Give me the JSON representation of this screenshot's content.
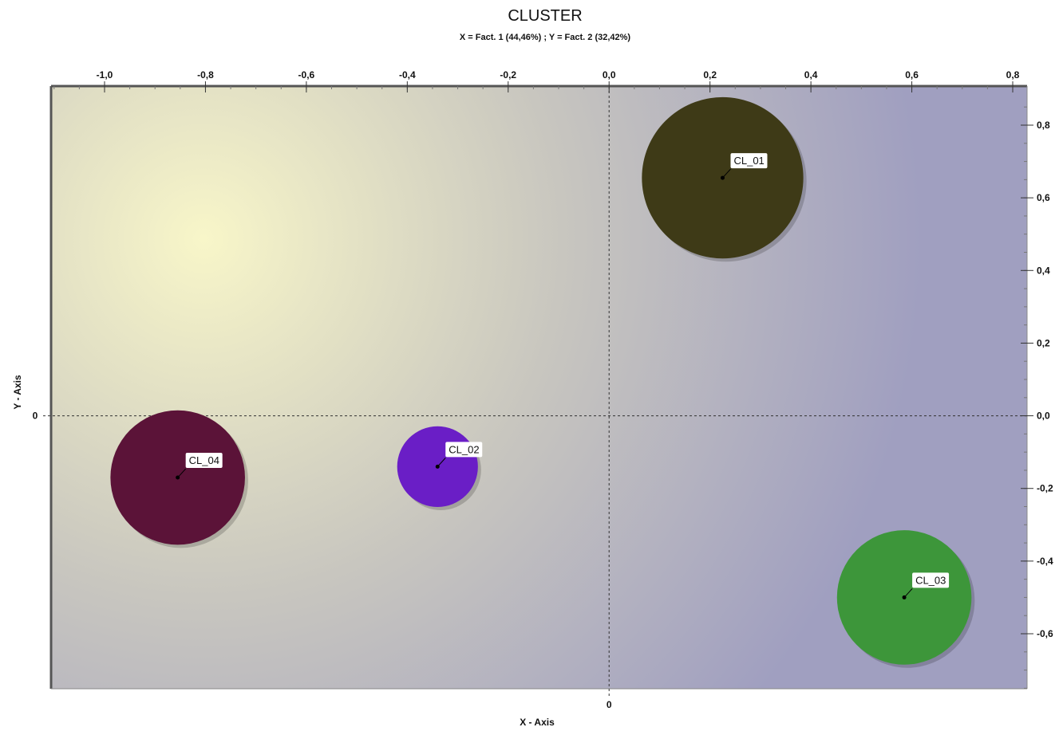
{
  "chart_data": {
    "type": "scatter",
    "title": "CLUSTER",
    "subtitle": "X = Fact. 1 (44,46%) ; Y = Fact. 2 (32,42%)",
    "xlabel": "X - Axis",
    "ylabel": "Y - Axis",
    "xlim": [
      -1.1,
      0.83
    ],
    "ylim": [
      -0.75,
      0.9
    ],
    "x_ticks": [
      -1.0,
      -0.8,
      -0.6,
      -0.4,
      -0.2,
      0.0,
      0.2,
      0.4,
      0.6,
      0.8
    ],
    "x_tick_labels": [
      "-1,0",
      "-0,8",
      "-0,6",
      "-0,4",
      "-0,2",
      "0,0",
      "0,2",
      "0,4",
      "0,6",
      "0,8"
    ],
    "y_ticks": [
      0.8,
      0.6,
      0.4,
      0.2,
      0.0,
      -0.2,
      -0.4,
      -0.6
    ],
    "y_tick_labels": [
      "0,8",
      "0,6",
      "0,4",
      "0,2",
      "0,0",
      "-0,2",
      "-0,4",
      "-0,6"
    ],
    "x_origin_label": "0",
    "y_origin_label": "0",
    "grid": false,
    "background_colors": [
      "#f8f6c9",
      "#a09fc0"
    ],
    "points": [
      {
        "label": "CL_01",
        "x": 0.225,
        "y": 0.655,
        "size": 0.72,
        "color": "#3e3a17"
      },
      {
        "label": "CL_02",
        "x": -0.34,
        "y": -0.14,
        "size": 0.36,
        "color": "#6a1ec6"
      },
      {
        "label": "CL_03",
        "x": 0.585,
        "y": -0.5,
        "size": 0.6,
        "color": "#3d963a"
      },
      {
        "label": "CL_04",
        "x": -0.855,
        "y": -0.17,
        "size": 0.6,
        "color": "#5b1338"
      }
    ]
  }
}
